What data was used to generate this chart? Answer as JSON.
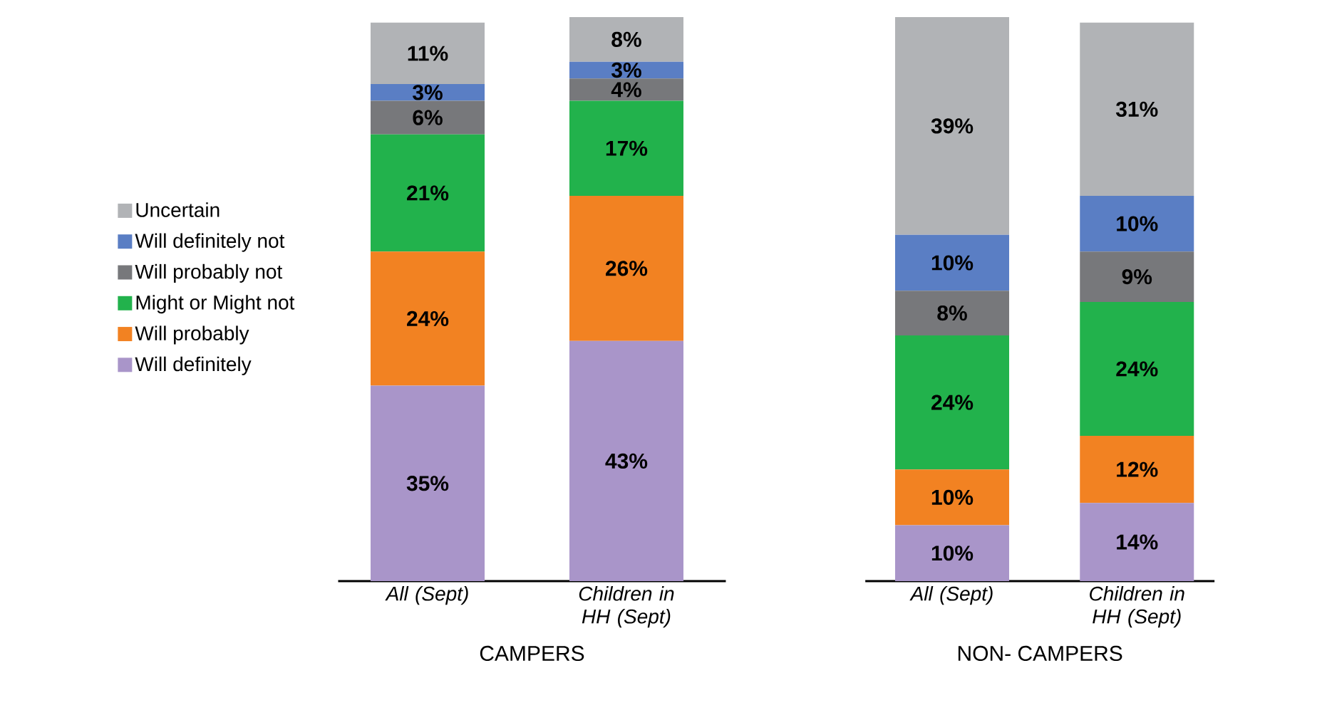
{
  "chart_data": [
    {
      "type": "bar",
      "stacked": true,
      "xlabel": "CAMPERS",
      "categories": [
        "All (Sept)",
        "Children in HH (Sept)"
      ],
      "ylim": [
        0,
        101
      ],
      "legend": "left",
      "tick_labels": "x",
      "series": [
        {
          "name": "Will definitely",
          "color": "#a995c9",
          "values": [
            35,
            43
          ],
          "value_labels": [
            "35%",
            "43%"
          ]
        },
        {
          "name": "Will probably",
          "color": "#f28222",
          "values": [
            24,
            26
          ],
          "value_labels": [
            "24%",
            "26%"
          ]
        },
        {
          "name": "Might or Might not",
          "color": "#22b24c",
          "values": [
            21,
            17
          ],
          "value_labels": [
            "21%",
            "17%"
          ]
        },
        {
          "name": "Will probably not",
          "color": "#77787b",
          "values": [
            6,
            4
          ],
          "value_labels": [
            "6%",
            "4%"
          ]
        },
        {
          "name": "Will definitely not",
          "color": "#5a7ec4",
          "values": [
            3,
            3
          ],
          "value_labels": [
            "3%",
            "3%"
          ]
        },
        {
          "name": "Uncertain",
          "color": "#b1b3b6",
          "values": [
            11,
            8
          ],
          "value_labels": [
            "11%",
            "8%"
          ]
        }
      ]
    },
    {
      "type": "bar",
      "stacked": true,
      "xlabel": "NON- CAMPERS",
      "categories": [
        "All (Sept)",
        "Children in HH (Sept)"
      ],
      "ylim": [
        0,
        101
      ],
      "tick_labels": "x",
      "series": [
        {
          "color": "#a995c9",
          "values": [
            10,
            14
          ],
          "value_labels": [
            "10%",
            "14%"
          ]
        },
        {
          "color": "#f28222",
          "values": [
            10,
            12
          ],
          "value_labels": [
            "10%",
            "12%"
          ]
        },
        {
          "color": "#22b24c",
          "values": [
            24,
            24
          ],
          "value_labels": [
            "24%",
            "24%"
          ]
        },
        {
          "color": "#77787b",
          "values": [
            8,
            9
          ],
          "value_labels": [
            "8%",
            "9%"
          ]
        },
        {
          "color": "#5a7ec4",
          "values": [
            10,
            10
          ],
          "value_labels": [
            "10%",
            "10%"
          ]
        },
        {
          "color": "#b1b3b6",
          "values": [
            39,
            31
          ],
          "value_labels": [
            "39%",
            "31%"
          ]
        }
      ]
    }
  ]
}
